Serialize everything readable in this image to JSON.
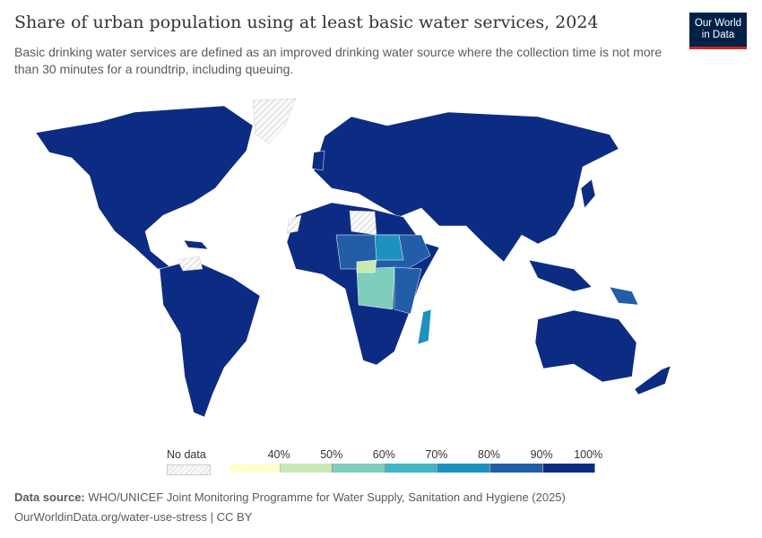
{
  "title": "Share of urban population using at least basic water services, 2024",
  "subtitle": "Basic drinking water services are defined as an improved drinking water source where the collection time is not more than 30 minutes for a roundtrip, including queuing.",
  "logo": "Our World in Data",
  "chart_data": {
    "type": "choropleth map",
    "legend": {
      "no_data_label": "No data",
      "bins": [
        {
          "label": "",
          "max": 40,
          "color": "#ffffcc"
        },
        {
          "label": "40%",
          "max": 50,
          "color": "#c7e9b4"
        },
        {
          "label": "50%",
          "max": 60,
          "color": "#7fcdbb"
        },
        {
          "label": "60%",
          "max": 70,
          "color": "#41b6c4"
        },
        {
          "label": "70%",
          "max": 80,
          "color": "#1d91c0"
        },
        {
          "label": "80%",
          "max": 90,
          "color": "#225ea8"
        },
        {
          "label": "90%",
          "max": 100,
          "color": "#0c2c84"
        }
      ],
      "end_label": "100%"
    },
    "no_data_color": "#eeeeee"
  },
  "footer": {
    "source_label": "Data source:",
    "source": "WHO/UNICEF Joint Monitoring Programme for Water Supply, Sanitation and Hygiene (2025)",
    "url": "OurWorldinData.org/water-use-stress | CC BY"
  }
}
